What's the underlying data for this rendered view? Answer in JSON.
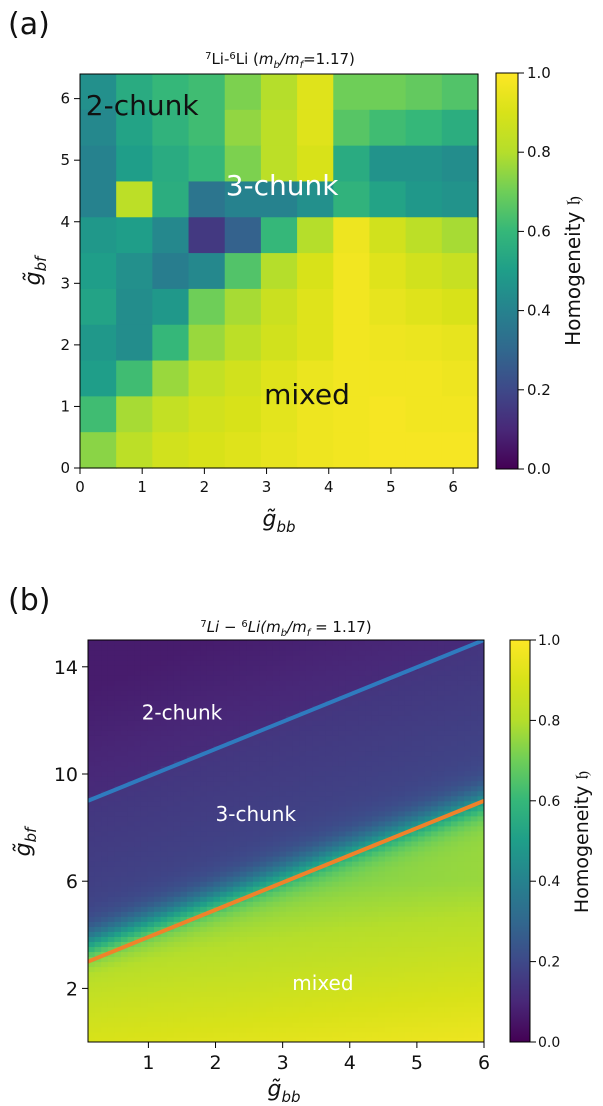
{
  "figure": {
    "panel_labels": [
      "(a)",
      "(b)"
    ]
  },
  "chart_data": [
    {
      "type": "heatmap",
      "panel": "(a)",
      "title_pre": "7",
      "title_mid": "Li-",
      "title_sup2": "6",
      "title_post": "Li (",
      "title_ratio": "m",
      "title_sub_b": "b",
      "title_slash": "/m",
      "title_sub_f": "f",
      "title_end": "=1.17)",
      "xlabel": "g̃",
      "xlabel_sub": "bb",
      "ylabel": "g̃",
      "ylabel_sub": "bf",
      "xlim": [
        0,
        6.4
      ],
      "ylim": [
        0,
        6.4
      ],
      "xticks": [
        0,
        1,
        2,
        3,
        4,
        5,
        6
      ],
      "yticks": [
        0,
        1,
        2,
        3,
        4,
        5,
        6
      ],
      "xtick_labels": [
        "0",
        "1",
        "2",
        "3",
        "4",
        "5",
        "6"
      ],
      "ytick_labels": [
        "0",
        "1",
        "2",
        "3",
        "4",
        "5",
        "6"
      ],
      "grid": {
        "nx": 11,
        "ny": 11,
        "values_top_to_bottom": [
          [
            0.45,
            0.55,
            0.6,
            0.62,
            0.72,
            0.8,
            0.92,
            0.7,
            0.7,
            0.68,
            0.65
          ],
          [
            0.42,
            0.52,
            0.58,
            0.62,
            0.75,
            0.82,
            0.92,
            0.66,
            0.62,
            0.6,
            0.56
          ],
          [
            0.4,
            0.5,
            0.55,
            0.6,
            0.72,
            0.82,
            0.9,
            0.55,
            0.46,
            0.46,
            0.44
          ],
          [
            0.4,
            0.82,
            0.56,
            0.35,
            0.4,
            0.4,
            0.45,
            0.58,
            0.52,
            0.48,
            0.46
          ],
          [
            0.48,
            0.5,
            0.42,
            0.15,
            0.28,
            0.6,
            0.8,
            0.96,
            0.88,
            0.82,
            0.78
          ],
          [
            0.5,
            0.45,
            0.38,
            0.42,
            0.65,
            0.8,
            0.9,
            0.97,
            0.92,
            0.88,
            0.85
          ],
          [
            0.52,
            0.44,
            0.48,
            0.7,
            0.78,
            0.86,
            0.92,
            0.97,
            0.94,
            0.92,
            0.9
          ],
          [
            0.48,
            0.44,
            0.6,
            0.76,
            0.82,
            0.88,
            0.92,
            0.97,
            0.96,
            0.95,
            0.94
          ],
          [
            0.5,
            0.62,
            0.76,
            0.84,
            0.88,
            0.92,
            0.95,
            0.97,
            0.97,
            0.97,
            0.96
          ],
          [
            0.62,
            0.78,
            0.84,
            0.88,
            0.9,
            0.93,
            0.96,
            0.97,
            0.98,
            0.97,
            0.97
          ],
          [
            0.74,
            0.82,
            0.88,
            0.9,
            0.92,
            0.94,
            0.96,
            0.97,
            0.98,
            0.98,
            0.98
          ]
        ]
      },
      "annotations": [
        {
          "text": "2-chunk",
          "x": 1.0,
          "y": 5.9,
          "color": "#111111"
        },
        {
          "text": "3-chunk",
          "x": 3.25,
          "y": 4.6,
          "color": "#ffffff"
        },
        {
          "text": "mixed",
          "x": 3.65,
          "y": 1.2,
          "color": "#111111"
        }
      ],
      "colorbar": {
        "label": "Homogeneity 𝔥",
        "range": [
          0,
          1
        ],
        "ticks": [
          0.0,
          0.2,
          0.4,
          0.6,
          0.8,
          1.0
        ],
        "tick_labels": [
          "0.0",
          "0.2",
          "0.4",
          "0.6",
          "0.8",
          "1.0"
        ],
        "colormap": "viridis"
      }
    },
    {
      "type": "heatmap",
      "panel": "(b)",
      "title_pre": "7",
      "title_mid": "Li − ",
      "title_sup2": "6",
      "title_post": "Li(",
      "title_ratio": "m",
      "title_sub_b": "b",
      "title_slash": "/m",
      "title_sub_f": "f",
      "title_end": " = 1.17)",
      "xlabel": "g̃",
      "xlabel_sub": "bb",
      "ylabel": "g̃",
      "ylabel_sub": "bf",
      "xlim": [
        0.1,
        6.0
      ],
      "ylim": [
        0.0,
        15.0
      ],
      "xticks": [
        1,
        2,
        3,
        4,
        5,
        6
      ],
      "yticks": [
        2,
        6,
        10,
        14
      ],
      "xtick_labels": [
        "1",
        "2",
        "3",
        "4",
        "5",
        "6"
      ],
      "ytick_labels": [
        "2",
        "6",
        "10",
        "14"
      ],
      "field": {
        "description_upper_line": "y = 9 + x",
        "description_lower_line": "y = 3 + x"
      },
      "lines": [
        {
          "x": [
            0.1,
            6.0
          ],
          "y": [
            9.0,
            15.0
          ],
          "color": "#2f7bbf"
        },
        {
          "x": [
            0.1,
            6.0
          ],
          "y": [
            3.0,
            9.0
          ],
          "color": "#f0822a"
        }
      ],
      "annotations": [
        {
          "text": "2-chunk",
          "x": 1.5,
          "y": 12.3,
          "color": "#ffffff"
        },
        {
          "text": "3-chunk",
          "x": 2.6,
          "y": 8.5,
          "color": "#ffffff"
        },
        {
          "text": "mixed",
          "x": 3.6,
          "y": 2.2,
          "color": "#ffffff"
        }
      ],
      "colorbar": {
        "label": "Homogeneity 𝔥",
        "range": [
          0,
          1
        ],
        "ticks": [
          0.0,
          0.2,
          0.4,
          0.6,
          0.8,
          1.0
        ],
        "tick_labels": [
          "0.0",
          "0.2",
          "0.4",
          "0.6",
          "0.8",
          "1.0"
        ],
        "colormap": "viridis"
      }
    }
  ]
}
